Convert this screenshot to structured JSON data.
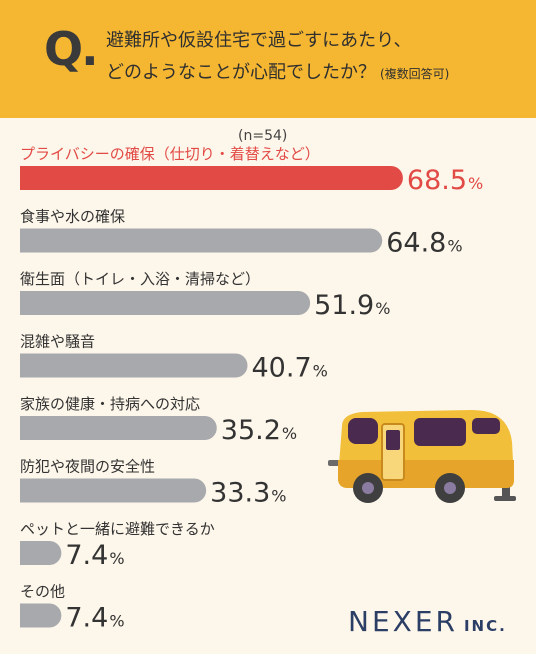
{
  "question": {
    "mark": "Q.",
    "line1": "避難所や仮設住宅で過ごすにあたり、",
    "line2": "どのようなことが心配でしたか？",
    "note": "(複数回答可)"
  },
  "sample_size": "(n=54)",
  "logo": {
    "name": "NEXER",
    "suffix": "INC."
  },
  "colors": {
    "header": "#f5b731",
    "highlight": "#e24a46",
    "bar": "#a8a9ad",
    "background": "#fdf6ea"
  },
  "chart_data": {
    "type": "bar",
    "orientation": "horizontal",
    "unit": "%",
    "xlim": [
      0,
      100
    ],
    "categories": [
      "プライバシーの確保（仕切り・着替えなど）",
      "食事や水の確保",
      "衛生面（トイレ・入浴・清掃など）",
      "混雑や騒音",
      "家族の健康・持病への対応",
      "防犯や夜間の安全性",
      "ペットと一緒に避難できるか",
      "その他"
    ],
    "values": [
      68.5,
      64.8,
      51.9,
      40.7,
      35.2,
      33.3,
      7.4,
      7.4
    ],
    "value_labels": [
      "68.5",
      "64.8",
      "51.9",
      "40.7",
      "35.2",
      "33.3",
      "7.4",
      "7.4"
    ],
    "highlight_index": 0
  }
}
